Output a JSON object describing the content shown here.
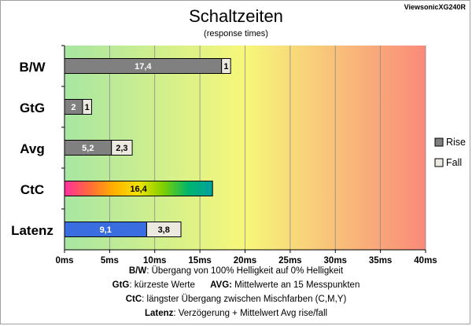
{
  "chart_data": {
    "type": "bar",
    "title": "Schaltzeiten",
    "subtitle": "(response times)",
    "model_label": "ViewsonicXG240R",
    "categories": [
      "B/W",
      "GtG",
      "Avg",
      "CtC",
      "Latenz"
    ],
    "series": [
      {
        "name": "Rise",
        "color": "#808080",
        "values": [
          17.4,
          2,
          5.2,
          16.4,
          9.1
        ],
        "labels": [
          "17,4",
          "2",
          "5,2",
          "16,4",
          "9,1"
        ]
      },
      {
        "name": "Fall",
        "color": "#ece9e0",
        "values": [
          1,
          1,
          2.3,
          null,
          3.8
        ],
        "labels": [
          "1",
          "1",
          "2,3",
          "",
          "3,8"
        ]
      }
    ],
    "special_bars": {
      "CtC": "rainbow",
      "Latenz": "#3a6ee0"
    },
    "x_ticks": [
      "0ms",
      "5ms",
      "10ms",
      "15ms",
      "20ms",
      "25ms",
      "30ms",
      "35ms",
      "40ms"
    ],
    "xlim": [
      0,
      40
    ],
    "background_gradient": [
      "#a7e6a2",
      "#f7f77a",
      "#fa8a7a"
    ],
    "grid": true,
    "legend_position": "right"
  },
  "footer": {
    "line1_key": "B/W",
    "line1_text": ":  Übergang von 100% Helligkeit auf 0% Helligkeit",
    "line2_key_a": "GtG",
    "line2_text_a": ": kürzeste  Werte",
    "line2_key_b": "AVG:",
    "line2_text_b": " Mittelwerte  an 15 Messpunkten",
    "line3_key": "CtC",
    "line3_text": ": längster Übergang  zwischen Mischfarben  (C,M,Y)",
    "line4_key": "Latenz",
    "line4_text": ": Verzögerung  + Mittelwert Avg rise/fall"
  }
}
